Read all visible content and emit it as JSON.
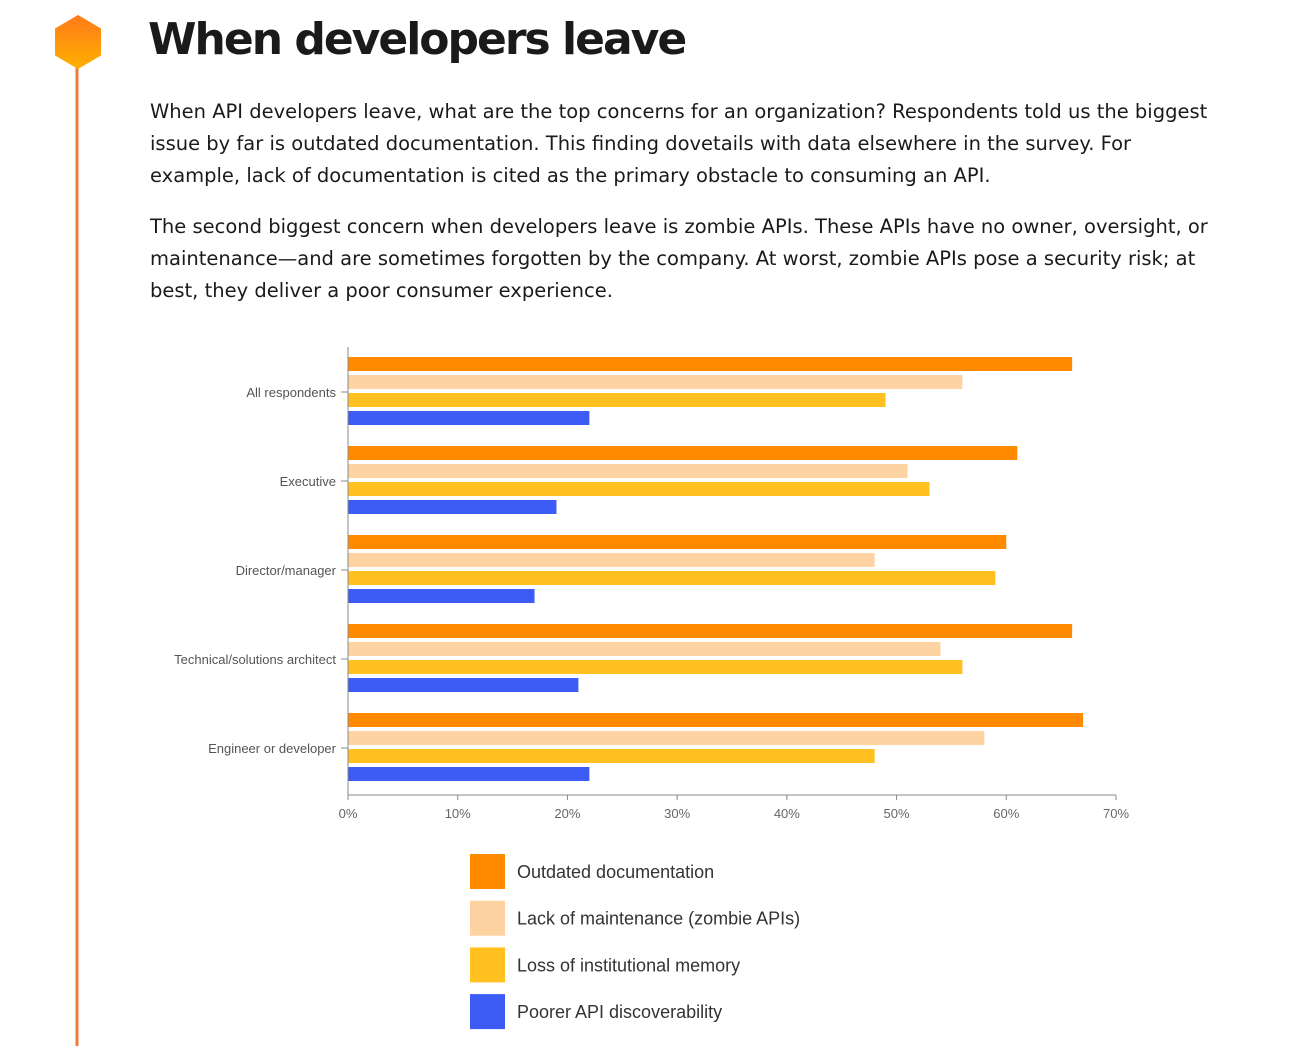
{
  "header": {
    "title": "When developers leave"
  },
  "paragraphs": [
    "When API developers leave, what are the top concerns for an organization? Respondents told us the biggest issue by far is outdated documentation. This finding dovetails with data elsewhere in the survey. For example, lack of documentation is cited as the primary obstacle to consuming an API.",
    "The second biggest concern when developers leave is zombie APIs. These APIs have no owner, oversight, or maintenance—and are sometimes forgotten by the company. At worst, zombie APIs pose a security risk; at best, they deliver a poor consumer experience."
  ],
  "chart_data": {
    "type": "hbar",
    "categories": [
      "All respondents",
      "Executive",
      "Director/manager",
      "Technical/solutions architect",
      "Engineer or developer"
    ],
    "series": [
      {
        "name": "Outdated documentation",
        "color": "#ff8a00",
        "values": [
          66,
          61,
          60,
          66,
          67
        ]
      },
      {
        "name": "Lack of maintenance (zombie APIs)",
        "color": "#fdd3a2",
        "values": [
          56,
          51,
          48,
          54,
          58
        ]
      },
      {
        "name": "Loss of institutional memory",
        "color": "#ffc020",
        "values": [
          49,
          53,
          59,
          56,
          48
        ]
      },
      {
        "name": "Poorer API discoverability",
        "color": "#3c5cf5",
        "values": [
          22,
          19,
          17,
          21,
          22
        ]
      }
    ],
    "xlim": [
      0,
      70
    ],
    "xticks": [
      {
        "value": 0,
        "label": "0%"
      },
      {
        "value": 10,
        "label": "10%"
      },
      {
        "value": 20,
        "label": "20%"
      },
      {
        "value": 30,
        "label": "30%"
      },
      {
        "value": 40,
        "label": "40%"
      },
      {
        "value": 50,
        "label": "50%"
      },
      {
        "value": 60,
        "label": "60%"
      },
      {
        "value": 70,
        "label": "70%"
      }
    ]
  }
}
